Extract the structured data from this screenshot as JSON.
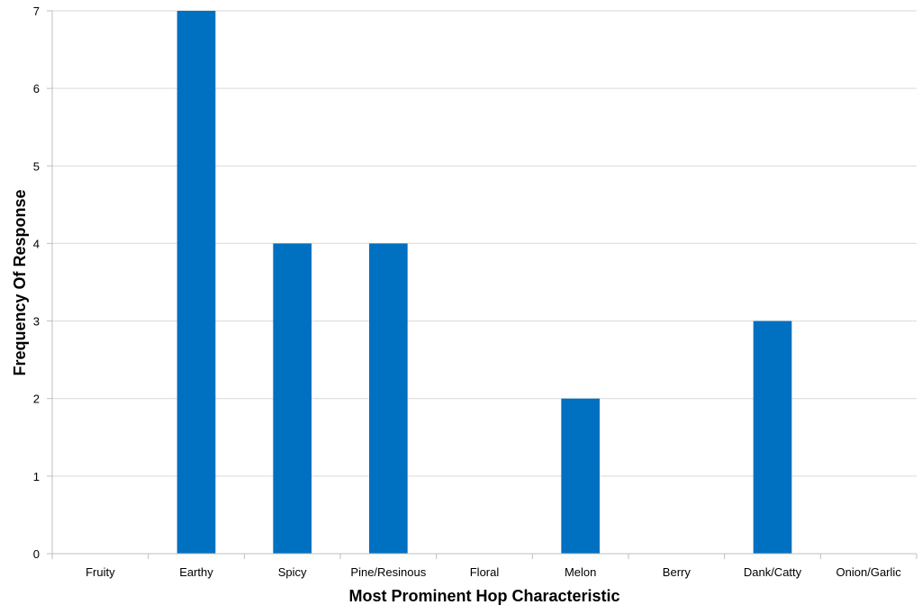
{
  "chart_data": {
    "type": "bar",
    "title": "",
    "xlabel": "Most Prominent Hop Characteristic",
    "ylabel": "Frequency Of Response",
    "categories": [
      "Fruity",
      "Earthy",
      "Spicy",
      "Pine/Resinous",
      "Floral",
      "Melon",
      "Berry",
      "Dank/Catty",
      "Onion/Garlic"
    ],
    "values": [
      0,
      7,
      4,
      4,
      0,
      2,
      0,
      3,
      0
    ],
    "ylim": [
      0,
      7
    ],
    "yticks": [
      0,
      1,
      2,
      3,
      4,
      5,
      6,
      7
    ],
    "grid": true,
    "legend": "none",
    "bar_color": "#0070c0"
  }
}
